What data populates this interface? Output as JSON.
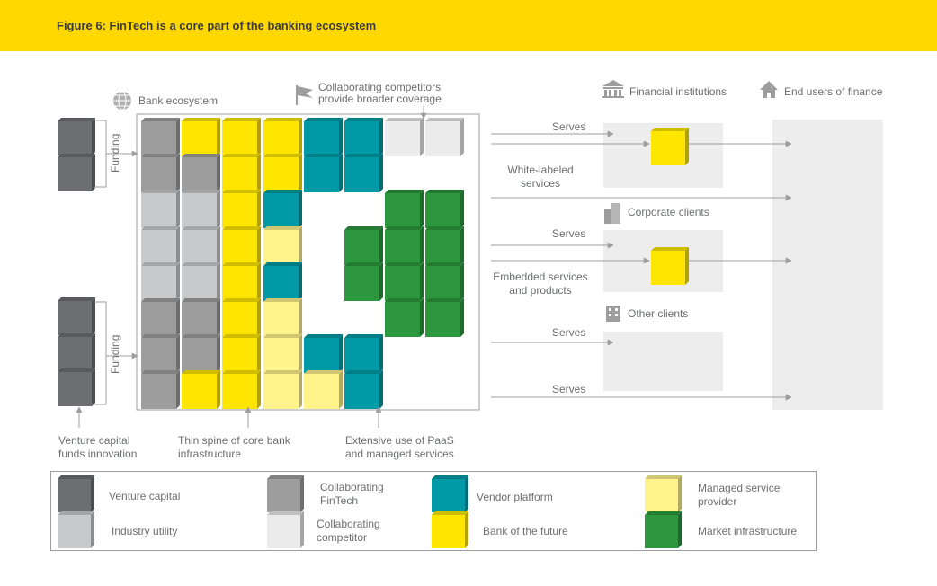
{
  "figure_title": "Figure 6: FinTech is a core part of the banking ecosystem",
  "labels": {
    "bank_ecosystem": "Bank ecosystem",
    "collaborating_competitors_1": "Collaborating competitors",
    "collaborating_competitors_2": "provide broader coverage",
    "financial_institutions": "Financial institutions",
    "end_users": "End users of finance",
    "corporate_clients": "Corporate clients",
    "other_clients": "Other clients",
    "funding": "Funding",
    "serves": "Serves",
    "white_labeled_1": "White-labeled",
    "white_labeled_2": "services",
    "embedded_1": "Embedded services",
    "embedded_2": "and products",
    "vc_note_1": "Venture capital",
    "vc_note_2": "funds innovation",
    "spine_1": "Thin spine of core bank",
    "spine_2": "infrastructure",
    "paas_1": "Extensive use of PaaS",
    "paas_2": "and managed services"
  },
  "legend": [
    {
      "key": "vc",
      "label_1": "Venture capital",
      "label_2": ""
    },
    {
      "key": "industry",
      "label_1": "Industry utility",
      "label_2": ""
    },
    {
      "key": "fintech",
      "label_1": "Collaborating",
      "label_2": "FinTech"
    },
    {
      "key": "competitor",
      "label_1": "Collaborating",
      "label_2": "competitor"
    },
    {
      "key": "vendor",
      "label_1": "Vendor platform",
      "label_2": ""
    },
    {
      "key": "bank",
      "label_1": "Bank of the future",
      "label_2": ""
    },
    {
      "key": "msp",
      "label_1": "Managed service",
      "label_2": "provider"
    },
    {
      "key": "market",
      "label_1": "Market infrastructure",
      "label_2": ""
    }
  ],
  "colors": {
    "vc": "#6d6e71",
    "fintech": "#9d9d9d",
    "industry": "#c8c9cb",
    "competitor": "#ebebeb",
    "vendor": "#009aa6",
    "bank": "#ffe600",
    "msp": "#fff38c",
    "market": "#2c973e",
    "banner": "#ffd800",
    "arrow": "#9d9d9d",
    "panel": "#ededed"
  },
  "grid": [
    [
      "fintech",
      "bank",
      "bank",
      "bank",
      "vendor",
      "vendor",
      "competitor",
      "competitor"
    ],
    [
      "fintech",
      "fintech",
      "bank",
      "bank",
      "vendor",
      "vendor",
      "",
      ""
    ],
    [
      "industry",
      "industry",
      "bank",
      "vendor",
      "",
      "",
      "market",
      "market"
    ],
    [
      "industry",
      "industry",
      "bank",
      "msp",
      "",
      "market",
      "market",
      "market"
    ],
    [
      "industry",
      "industry",
      "bank",
      "vendor",
      "",
      "market",
      "market",
      "market"
    ],
    [
      "fintech",
      "fintech",
      "bank",
      "msp",
      "",
      "",
      "market",
      "market"
    ],
    [
      "fintech",
      "fintech",
      "bank",
      "msp",
      "vendor",
      "vendor",
      "",
      ""
    ],
    [
      "fintech",
      "bank",
      "bank",
      "msp",
      "msp",
      "vendor",
      "",
      ""
    ]
  ]
}
